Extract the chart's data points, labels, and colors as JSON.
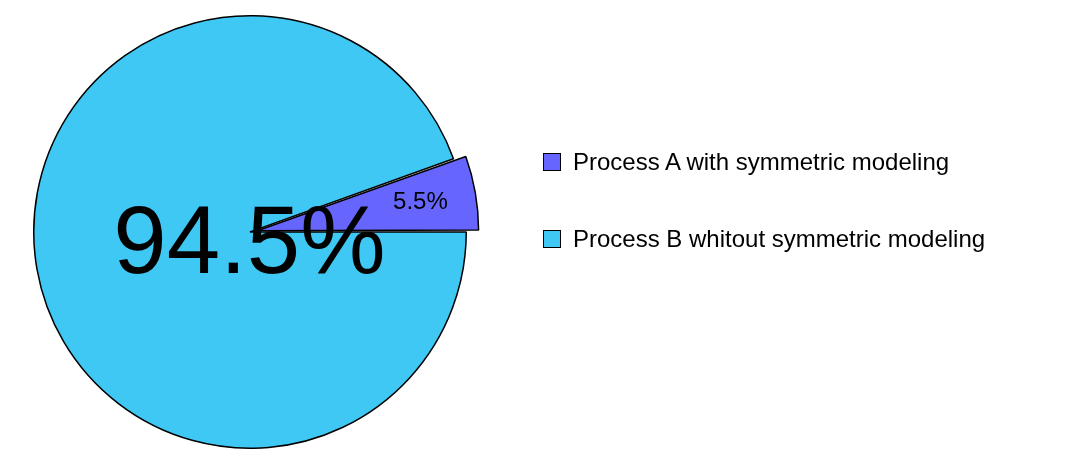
{
  "chart_data": {
    "type": "pie",
    "categories": [
      "Process A with symmetric modeling",
      "Process B whitout symmetric modeling"
    ],
    "values": [
      5.5,
      94.5
    ],
    "colors": [
      "#6666ff",
      "#40c8f4"
    ],
    "value_labels": [
      "5.5%",
      "94.5%"
    ],
    "legend": "right"
  }
}
